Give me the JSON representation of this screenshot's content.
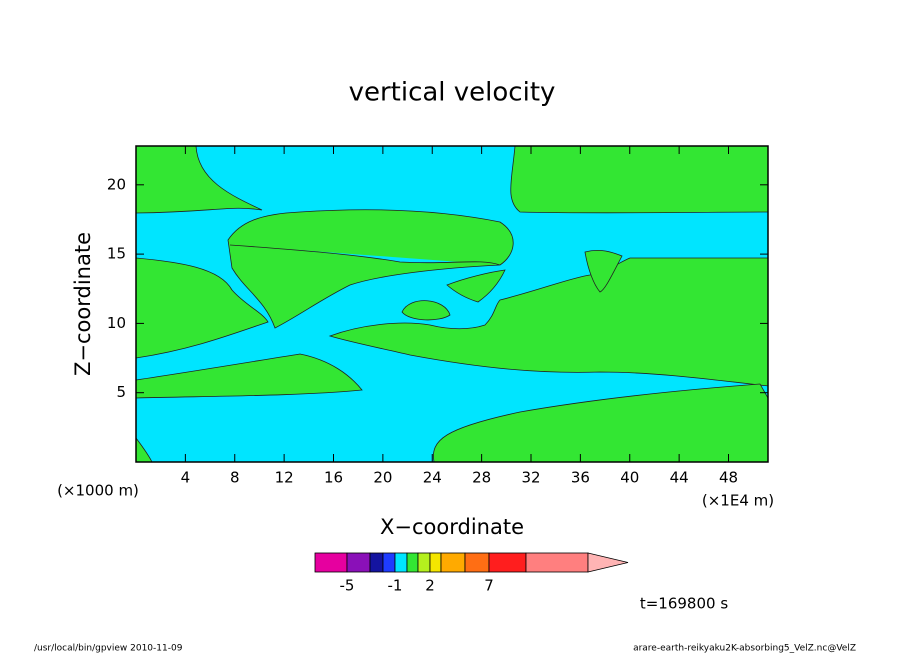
{
  "chart_data": {
    "type": "contour",
    "title": "vertical velocity",
    "xlabel": "X−coordinate",
    "ylabel": "Z−coordinate",
    "x_unit": "(×1E4 m)",
    "y_unit": "(×1000 m)",
    "xlim": [
      0,
      51.2
    ],
    "xticks": [
      4,
      8,
      12,
      16,
      20,
      24,
      28,
      32,
      36,
      40,
      44,
      48
    ],
    "ylim": [
      0,
      22.8
    ],
    "yticks": [
      5,
      10,
      15,
      20
    ],
    "colorbar": {
      "colors": [
        "#e6009f",
        "#8a10b8",
        "#1414a0",
        "#1e3cff",
        "#00e5ff",
        "#33e633",
        "#b4f01e",
        "#f5e600",
        "#ffaa00",
        "#ff6e14",
        "#ff1e1e",
        "#ff7f7f",
        "#ffb4b4"
      ],
      "ticks": [
        -5,
        -1,
        2,
        7
      ]
    },
    "time_label": "t=169800 s",
    "footer_left": "/usr/local/bin/gpview  2010-11-09",
    "footer_right": "arare-earth-reikyaku2K-absorbing5_VelZ.nc@VelZ"
  }
}
